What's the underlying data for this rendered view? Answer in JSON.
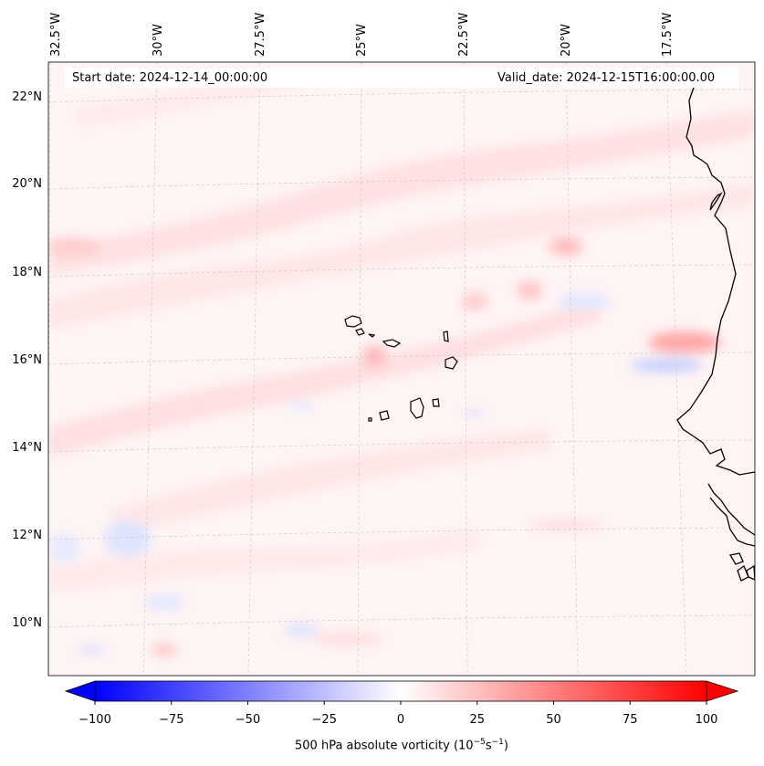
{
  "map": {
    "header": {
      "start_date": "Start date: 2024-12-14_00:00:00",
      "valid_date": "Valid_date: 2024-12-15T16:00:00.00"
    },
    "longitude_labels": [
      "32.5°W",
      "30°W",
      "27.5°W",
      "25°W",
      "22.5°W",
      "20°W",
      "17.5°W"
    ],
    "latitude_labels": [
      "22°N",
      "20°N",
      "18°N",
      "16°N",
      "14°N",
      "12°N",
      "10°N"
    ],
    "gridlines": "dashed",
    "features": [
      "Cape Verde islands",
      "West African coastline"
    ]
  },
  "colorbar": {
    "ticks": [
      "−100",
      "−75",
      "−50",
      "−25",
      "0",
      "25",
      "50",
      "75",
      "100"
    ],
    "label": "500 hPa absolute vorticity (10",
    "label_exp1": "−5",
    "label_mid": "s",
    "label_exp2": "−1",
    "label_end": ")",
    "range": [
      -100,
      100
    ],
    "extend": "both",
    "colormap": "bwr",
    "low_color": "#0000ff",
    "mid_color": "#ffffff",
    "high_color": "#ff0000"
  }
}
